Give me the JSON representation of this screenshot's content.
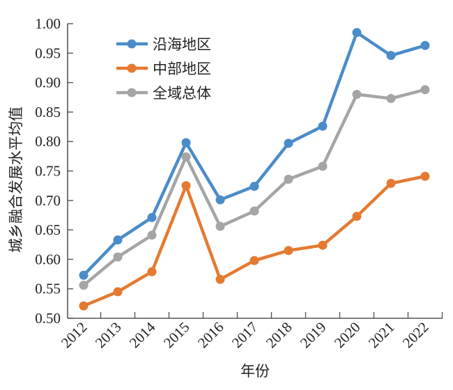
{
  "chart_data": {
    "type": "line",
    "title": "",
    "xlabel": "年份",
    "ylabel": "城乡融合发展水平均值",
    "ylim": [
      0.5,
      1.0
    ],
    "yticks": [
      "0.50",
      "0.55",
      "0.60",
      "0.65",
      "0.70",
      "0.75",
      "0.80",
      "0.85",
      "0.90",
      "0.95",
      "1.00"
    ],
    "ytick_values": [
      0.5,
      0.55,
      0.6,
      0.65,
      0.7,
      0.75,
      0.8,
      0.85,
      0.9,
      0.95,
      1.0
    ],
    "categories": [
      "2012",
      "2013",
      "2014",
      "2015",
      "2016",
      "2017",
      "2018",
      "2019",
      "2020",
      "2021",
      "2022"
    ],
    "grid": false,
    "legend_position": "top-left",
    "series": [
      {
        "name": "沿海地区",
        "color": "#4a8cc9",
        "values": [
          0.573,
          0.633,
          0.671,
          0.798,
          0.701,
          0.724,
          0.797,
          0.826,
          0.985,
          0.946,
          0.963
        ]
      },
      {
        "name": "中部地区",
        "color": "#e47a30",
        "values": [
          0.521,
          0.545,
          0.579,
          0.725,
          0.566,
          0.598,
          0.615,
          0.624,
          0.673,
          0.729,
          0.741
        ]
      },
      {
        "name": "全域总体",
        "color": "#a5a5a5",
        "values": [
          0.556,
          0.604,
          0.641,
          0.774,
          0.656,
          0.682,
          0.736,
          0.758,
          0.88,
          0.873,
          0.888
        ]
      }
    ]
  }
}
